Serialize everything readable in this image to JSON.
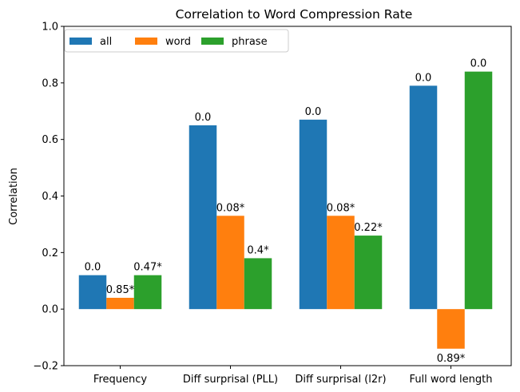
{
  "chart_data": {
    "type": "bar",
    "title": "Correlation to Word Compression Rate",
    "xlabel": "",
    "ylabel": "Correlation",
    "ylim": [
      -0.2,
      1.0
    ],
    "yticks": [
      -0.2,
      0.0,
      0.2,
      0.4,
      0.6,
      0.8,
      1.0
    ],
    "ytick_labels": [
      "−0.2",
      "0.0",
      "0.2",
      "0.4",
      "0.6",
      "0.8",
      "1.0"
    ],
    "categories": [
      "Frequency",
      "Diff surprisal (PLL)",
      "Diff surprisal (l2r)",
      "Full word length"
    ],
    "grid": false,
    "legend_position": "top-left",
    "series": [
      {
        "name": "all",
        "color": "#1f77b4",
        "values": [
          0.12,
          0.65,
          0.67,
          0.79
        ],
        "labels": [
          "0.0",
          "0.0",
          "0.0",
          "0.0"
        ]
      },
      {
        "name": "word",
        "color": "#ff7f0e",
        "values": [
          0.04,
          0.33,
          0.33,
          -0.14
        ],
        "labels": [
          "0.85*",
          "0.08*",
          "0.08*",
          "0.89*"
        ]
      },
      {
        "name": "phrase",
        "color": "#2ca02c",
        "values": [
          0.12,
          0.18,
          0.26,
          0.84
        ],
        "labels": [
          "0.47*",
          "0.4*",
          "0.22*",
          "0.0"
        ]
      }
    ]
  }
}
